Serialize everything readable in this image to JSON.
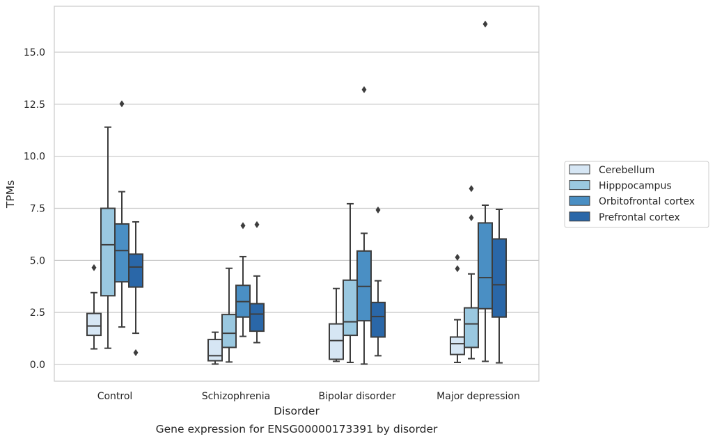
{
  "chart_data": {
    "type": "boxplot",
    "title": "Gene expression for ENSG00000173391 by disorder",
    "xlabel": "Disorder",
    "ylabel": "TPMs",
    "ylim": [
      -0.8,
      17.4
    ],
    "yticks": [
      0.0,
      2.5,
      5.0,
      7.5,
      10.0,
      12.5,
      15.0
    ],
    "ytick_labels": [
      "0.0",
      "2.5",
      "5.0",
      "7.5",
      "10.0",
      "12.5",
      "15.0"
    ],
    "grid": true,
    "legend_position": "right",
    "categories": [
      "Control",
      "Schizophrenia",
      "Bipolar disorder",
      "Major depression"
    ],
    "series": [
      {
        "name": "Cerebellum",
        "color": "#d6e6f4",
        "boxes": [
          {
            "whislo": 0.75,
            "q1": 1.4,
            "med": 1.85,
            "q3": 2.45,
            "whishi": 3.45,
            "fliers": [
              4.65
            ]
          },
          {
            "whislo": 0.02,
            "q1": 0.18,
            "med": 0.42,
            "q3": 1.2,
            "whishi": 1.55,
            "fliers": []
          },
          {
            "whislo": 0.15,
            "q1": 0.25,
            "med": 1.15,
            "q3": 1.95,
            "whishi": 3.65,
            "fliers": []
          },
          {
            "whislo": 0.1,
            "q1": 0.48,
            "med": 1.0,
            "q3": 1.32,
            "whishi": 2.15,
            "fliers": [
              4.6,
              5.15
            ]
          }
        ]
      },
      {
        "name": "Hipppocampus",
        "color": "#9ac8e0",
        "boxes": [
          {
            "whislo": 0.78,
            "q1": 3.3,
            "med": 5.75,
            "q3": 7.5,
            "whishi": 11.4,
            "fliers": []
          },
          {
            "whislo": 0.12,
            "q1": 0.82,
            "med": 1.5,
            "q3": 2.4,
            "whishi": 4.62,
            "fliers": []
          },
          {
            "whislo": 0.1,
            "q1": 1.4,
            "med": 2.05,
            "q3": 4.05,
            "whishi": 7.72,
            "fliers": []
          },
          {
            "whislo": 0.28,
            "q1": 0.82,
            "med": 1.95,
            "q3": 2.72,
            "whishi": 4.35,
            "fliers": [
              7.05,
              8.45
            ]
          }
        ]
      },
      {
        "name": "Orbitofrontal cortex",
        "color": "#4a8fc4",
        "boxes": [
          {
            "whislo": 1.8,
            "q1": 3.97,
            "med": 5.47,
            "q3": 6.75,
            "whishi": 8.3,
            "fliers": [
              12.52
            ]
          },
          {
            "whislo": 1.35,
            "q1": 2.28,
            "med": 3.02,
            "q3": 3.8,
            "whishi": 5.18,
            "fliers": [
              6.67
            ]
          },
          {
            "whislo": 0.02,
            "q1": 2.1,
            "med": 3.75,
            "q3": 5.45,
            "whishi": 6.3,
            "fliers": [
              13.2
            ]
          },
          {
            "whislo": 0.15,
            "q1": 2.68,
            "med": 4.17,
            "q3": 6.8,
            "whishi": 7.65,
            "fliers": [
              16.35
            ]
          }
        ]
      },
      {
        "name": "Prefrontal cortex",
        "color": "#2a67a8",
        "boxes": [
          {
            "whislo": 1.5,
            "q1": 3.72,
            "med": 4.68,
            "q3": 5.3,
            "whishi": 6.85,
            "fliers": [
              0.57
            ]
          },
          {
            "whislo": 1.05,
            "q1": 1.6,
            "med": 2.42,
            "q3": 2.92,
            "whishi": 4.25,
            "fliers": [
              6.72
            ]
          },
          {
            "whislo": 0.42,
            "q1": 1.32,
            "med": 2.3,
            "q3": 2.98,
            "whishi": 4.02,
            "fliers": [
              7.42
            ]
          },
          {
            "whislo": 0.08,
            "q1": 2.28,
            "med": 3.83,
            "q3": 6.03,
            "whishi": 7.45,
            "fliers": []
          }
        ]
      }
    ]
  }
}
